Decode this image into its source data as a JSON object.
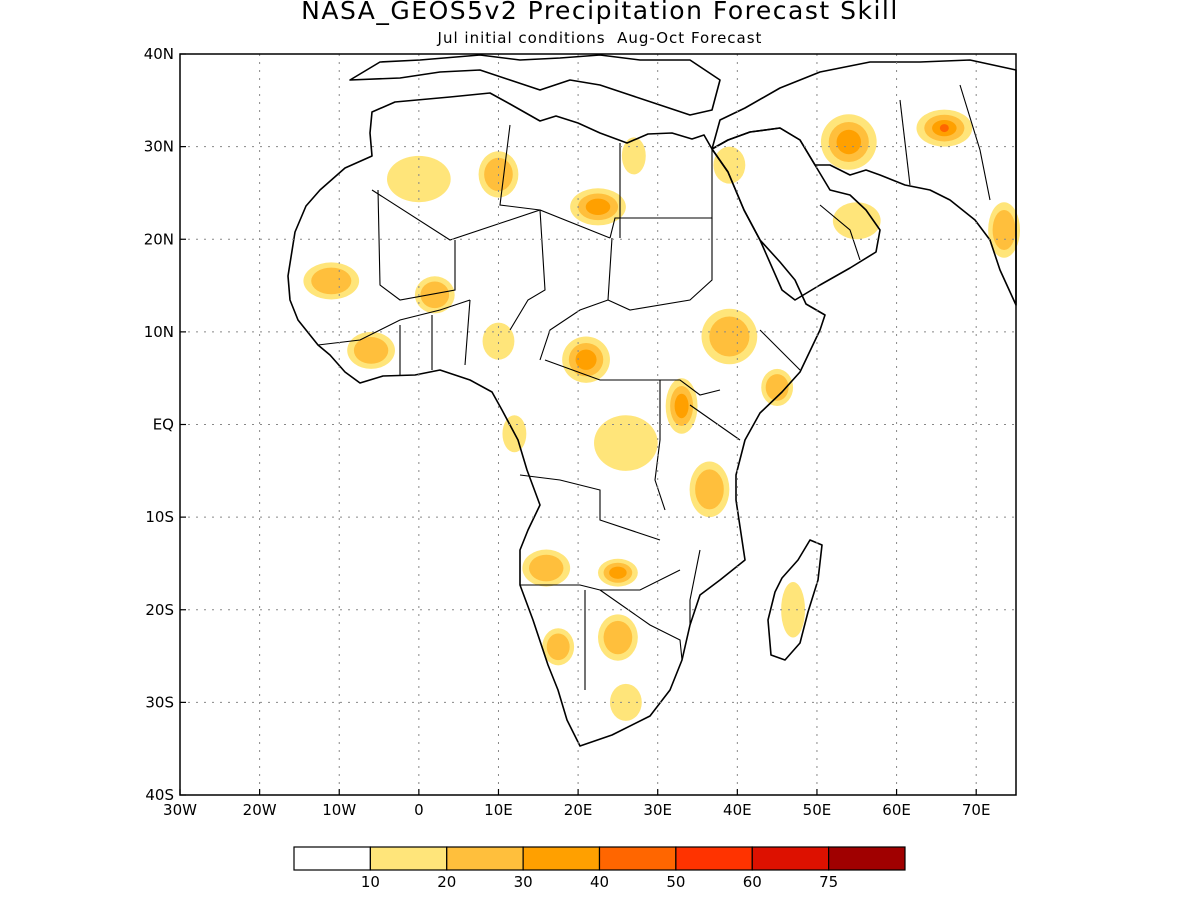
{
  "title": "NASA_GEOS5v2 Precipitation Forecast Skill",
  "subtitle": "Jul initial conditions  Aug-Oct Forecast",
  "map": {
    "region": "Africa and Middle East",
    "lon_range": [
      -30,
      75
    ],
    "lat_range": [
      -40,
      40
    ],
    "grid_lines": "dotted",
    "land_color": "#ffffff",
    "boundary_color": "#000000"
  },
  "axes": {
    "x_ticks": [
      {
        "lon": -30,
        "label": "30W"
      },
      {
        "lon": -20,
        "label": "20W"
      },
      {
        "lon": -10,
        "label": "10W"
      },
      {
        "lon": 0,
        "label": "0"
      },
      {
        "lon": 10,
        "label": "10E"
      },
      {
        "lon": 20,
        "label": "20E"
      },
      {
        "lon": 30,
        "label": "30E"
      },
      {
        "lon": 40,
        "label": "40E"
      },
      {
        "lon": 50,
        "label": "50E"
      },
      {
        "lon": 60,
        "label": "60E"
      },
      {
        "lon": 70,
        "label": "70E"
      }
    ],
    "y_ticks": [
      {
        "lat": 40,
        "label": "40N"
      },
      {
        "lat": 30,
        "label": "30N"
      },
      {
        "lat": 20,
        "label": "20N"
      },
      {
        "lat": 10,
        "label": "10N"
      },
      {
        "lat": 0,
        "label": "EQ"
      },
      {
        "lat": -10,
        "label": "10S"
      },
      {
        "lat": -20,
        "label": "20S"
      },
      {
        "lat": -30,
        "label": "30S"
      },
      {
        "lat": -40,
        "label": "40S"
      }
    ]
  },
  "legend": {
    "colors": [
      "#ffffff",
      "#ffe57a",
      "#ffbf3c",
      "#ffa000",
      "#ff6600",
      "#ff3300",
      "#dd1100",
      "#a00000"
    ],
    "labels": [
      "10",
      "20",
      "30",
      "40",
      "50",
      "60",
      "75"
    ]
  },
  "skill_regions": [
    {
      "name": "w-africa-1",
      "lon": -11,
      "lat": 15.5,
      "rx": 3.5,
      "ry": 2,
      "level": 2
    },
    {
      "name": "w-africa-2",
      "lon": -6,
      "lat": 8,
      "rx": 3,
      "ry": 2,
      "level": 2
    },
    {
      "name": "w-africa-3",
      "lon": 2,
      "lat": 14,
      "rx": 2.5,
      "ry": 2,
      "level": 2
    },
    {
      "name": "sahara-1",
      "lon": 0,
      "lat": 26.5,
      "rx": 4,
      "ry": 2.5,
      "level": 1
    },
    {
      "name": "sahara-2",
      "lon": 10,
      "lat": 27,
      "rx": 2.5,
      "ry": 2.5,
      "level": 2
    },
    {
      "name": "sahara-3",
      "lon": 22.5,
      "lat": 23.5,
      "rx": 3.5,
      "ry": 2,
      "level": 3
    },
    {
      "name": "egypt",
      "lon": 27,
      "lat": 29,
      "rx": 1.5,
      "ry": 2,
      "level": 1
    },
    {
      "name": "sinai",
      "lon": 39,
      "lat": 28,
      "rx": 2,
      "ry": 2,
      "level": 1
    },
    {
      "name": "iran",
      "lon": 54,
      "lat": 30.5,
      "rx": 3.5,
      "ry": 3,
      "level": 3
    },
    {
      "name": "afghanistan",
      "lon": 66,
      "lat": 32,
      "rx": 3.5,
      "ry": 2,
      "level": 4
    },
    {
      "name": "india",
      "lon": 73.5,
      "lat": 21,
      "rx": 2,
      "ry": 3,
      "level": 2
    },
    {
      "name": "oman",
      "lon": 55,
      "lat": 22,
      "rx": 3,
      "ry": 2,
      "level": 1
    },
    {
      "name": "chad",
      "lon": 21,
      "lat": 7,
      "rx": 3,
      "ry": 2.5,
      "level": 3
    },
    {
      "name": "ethiopia",
      "lon": 39,
      "lat": 9.5,
      "rx": 3.5,
      "ry": 3,
      "level": 2
    },
    {
      "name": "somalia",
      "lon": 45,
      "lat": 4,
      "rx": 2,
      "ry": 2,
      "level": 2
    },
    {
      "name": "uganda",
      "lon": 33,
      "lat": 2,
      "rx": 2,
      "ry": 3,
      "level": 3
    },
    {
      "name": "tanzania",
      "lon": 36.5,
      "lat": -7,
      "rx": 2.5,
      "ry": 3,
      "level": 2
    },
    {
      "name": "congo",
      "lon": 26,
      "lat": -2,
      "rx": 4,
      "ry": 3,
      "level": 1
    },
    {
      "name": "angola",
      "lon": 16,
      "lat": -15.5,
      "rx": 3,
      "ry": 2,
      "level": 2
    },
    {
      "name": "zambia",
      "lon": 25,
      "lat": -16,
      "rx": 2.5,
      "ry": 1.5,
      "level": 3
    },
    {
      "name": "namibia",
      "lon": 17.5,
      "lat": -24,
      "rx": 2,
      "ry": 2,
      "level": 2
    },
    {
      "name": "botswana",
      "lon": 25,
      "lat": -23,
      "rx": 2.5,
      "ry": 2.5,
      "level": 2
    },
    {
      "name": "s-africa",
      "lon": 26,
      "lat": -30,
      "rx": 2,
      "ry": 2,
      "level": 1
    },
    {
      "name": "madagascar",
      "lon": 47,
      "lat": -20,
      "rx": 1.5,
      "ry": 3,
      "level": 1
    },
    {
      "name": "gabon",
      "lon": 12,
      "lat": -1,
      "rx": 1.5,
      "ry": 2,
      "level": 1
    },
    {
      "name": "nigeria",
      "lon": 10,
      "lat": 9,
      "rx": 2,
      "ry": 2,
      "level": 1
    }
  ]
}
